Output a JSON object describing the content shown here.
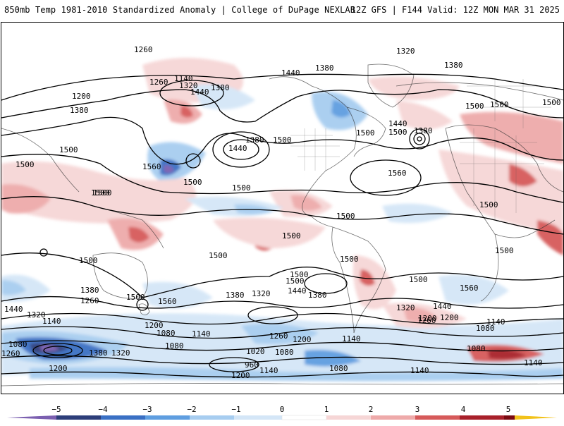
{
  "header": {
    "left_title": "850mb Temp 1981-2010 Standardized Anomaly | College of DuPage NEXLAB",
    "right_title": "12Z GFS | F144 Valid: 12Z MON MAR 31 2025"
  },
  "colorbar": {
    "ticks": [
      "−5",
      "−4",
      "−3",
      "−2",
      "−1",
      "0",
      "1",
      "2",
      "3",
      "4",
      "5"
    ],
    "colors": {
      "purple": "#7b5fb0",
      "dark_blue": "#2d3e7a",
      "blue": "#3a70c4",
      "mid_blue": "#5f9ee0",
      "light_blue": "#a7cdf0",
      "pale_blue": "#d4e6f7",
      "white": "#ffffff",
      "pale_red": "#f6d6d6",
      "light_red": "#eeaaaa",
      "red": "#d65a5a",
      "dark_red": "#a8202a",
      "maroon": "#7a0a12",
      "yellow": "#f2c21a"
    }
  },
  "contour_labels": [
    "1260",
    "1320",
    "1140",
    "1260",
    "1320",
    "1440",
    "1380",
    "1200",
    "1380",
    "1500",
    "1560",
    "1500",
    "1380",
    "1440",
    "1500",
    "1380",
    "1440",
    "1380",
    "1440",
    "1500",
    "1380",
    "1500",
    "1560",
    "1500",
    "1500",
    "1500",
    "1500",
    "1500",
    "1500",
    "1500",
    "1500",
    "1500",
    "1500",
    "1560",
    "1500",
    "1500",
    "1500",
    "1380",
    "1320",
    "1440",
    "1380",
    "1320",
    "1440",
    "1380",
    "1260",
    "1200",
    "1140",
    "1080",
    "1140",
    "1200",
    "1260",
    "1200",
    "1140",
    "1080",
    "1080",
    "1020",
    "960",
    "1140",
    "1080",
    "1200",
    "1080",
    "1260",
    "1200",
    "1380",
    "1320",
    "1140",
    "1140",
    "1080",
    "1200",
    "1440",
    "1320",
    "1140",
    "1080",
    "1260",
    "1500",
    "1500",
    "1500",
    "1560",
    "1500",
    "1500"
  ]
}
